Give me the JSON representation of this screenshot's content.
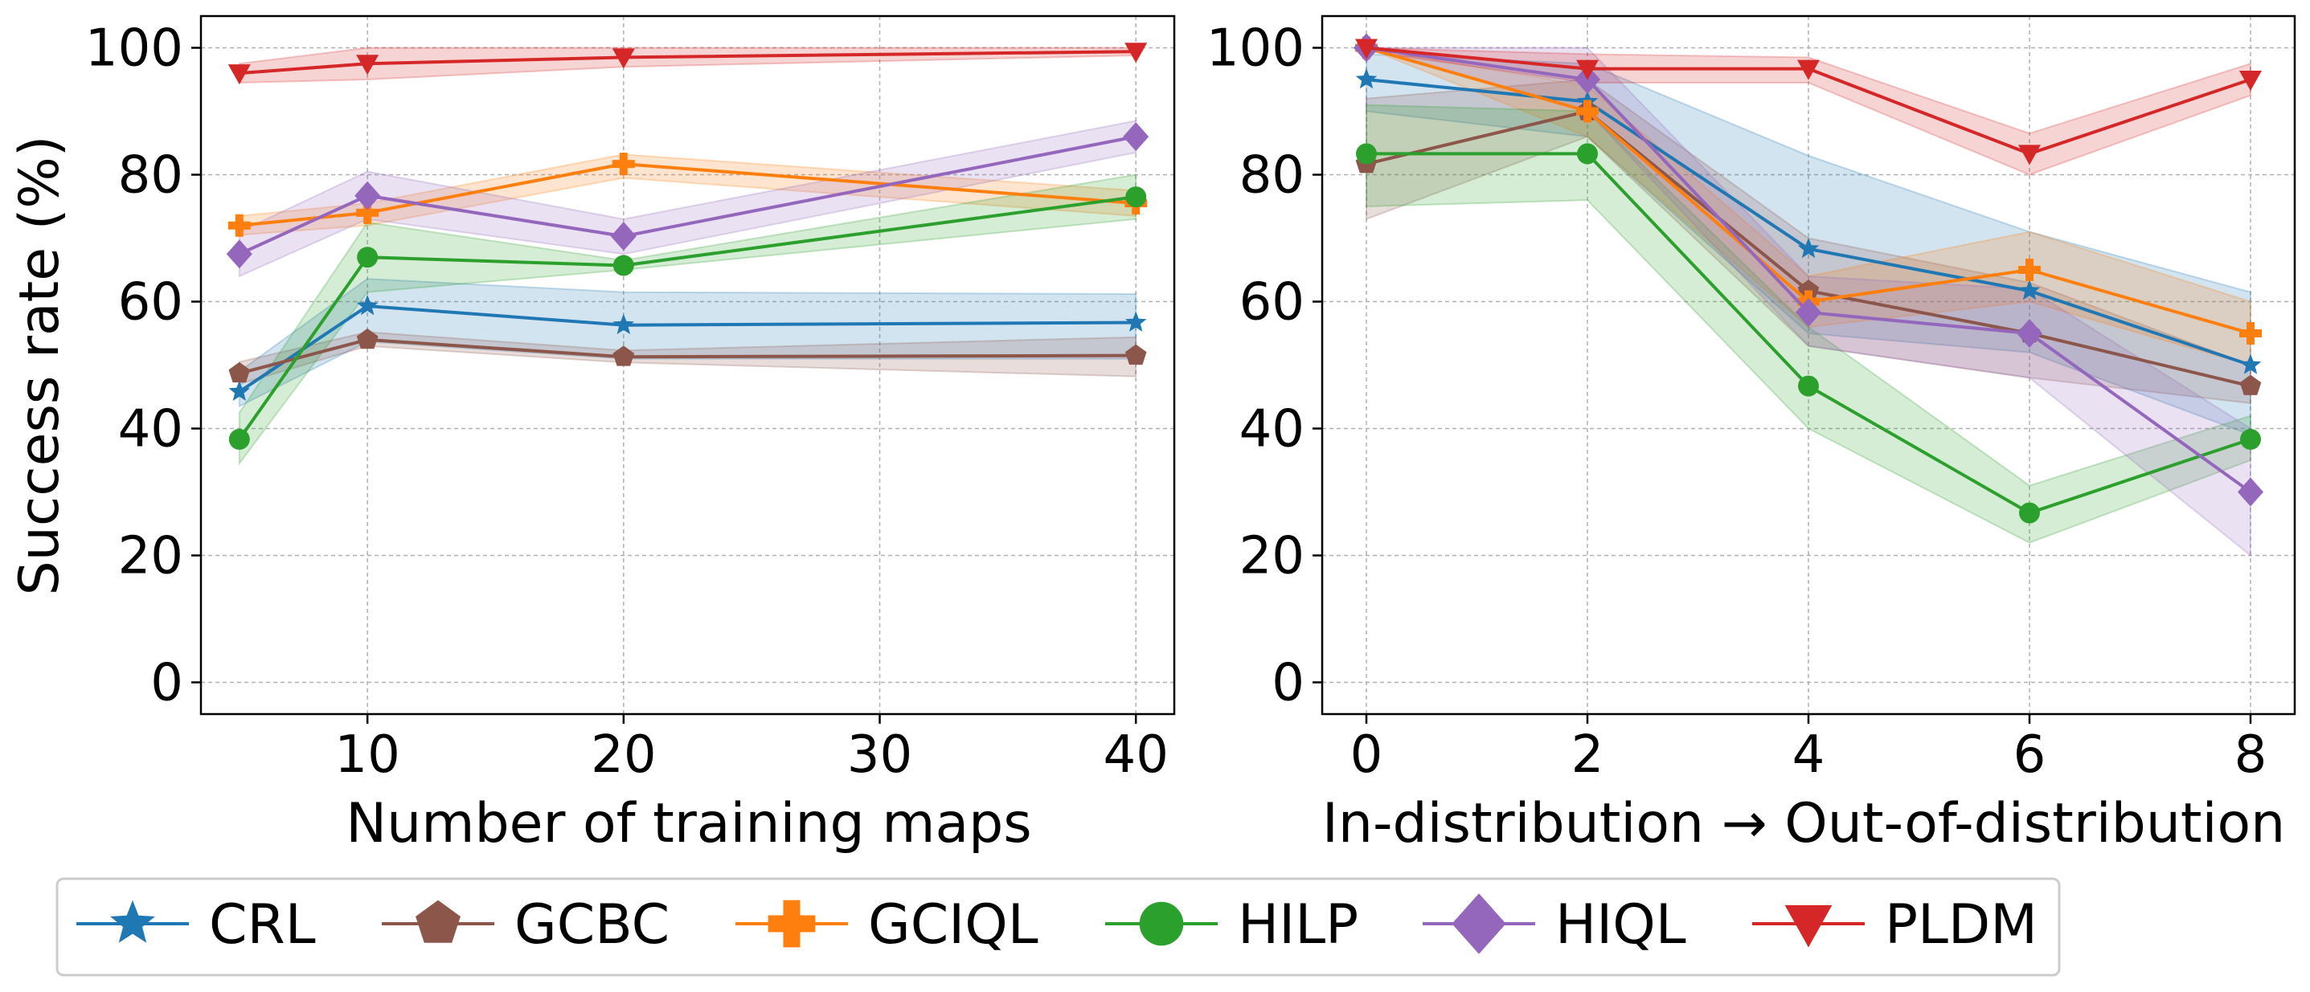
{
  "chart_data": [
    {
      "type": "line",
      "title": "",
      "xlabel": "Number of training maps",
      "ylabel": "Success rate (%)",
      "xlim": [
        3.5,
        41.5
      ],
      "ylim": [
        -5,
        105
      ],
      "xticks": [
        10,
        20,
        30,
        40
      ],
      "yticks": [
        0,
        20,
        40,
        60,
        80,
        100
      ],
      "grid": true,
      "series": [
        {
          "name": "CRL",
          "color": "#1f77b4",
          "marker": "star",
          "x": [
            5,
            10,
            20,
            40
          ],
          "y": [
            45.8,
            59.3,
            56.3,
            56.7
          ],
          "lower": [
            43.5,
            53.7,
            51.0,
            51.0
          ],
          "upper": [
            49.0,
            63.6,
            61.5,
            61.2
          ]
        },
        {
          "name": "GCBC",
          "color": "#8c564b",
          "marker": "pentagon",
          "x": [
            5,
            10,
            20,
            40
          ],
          "y": [
            48.7,
            54.0,
            51.3,
            51.5
          ],
          "lower": [
            47.0,
            53.0,
            50.4,
            48.2
          ],
          "upper": [
            50.5,
            55.2,
            52.3,
            54.4
          ]
        },
        {
          "name": "GCIQL",
          "color": "#ff7f0e",
          "marker": "plus",
          "x": [
            5,
            10,
            20,
            40
          ],
          "y": [
            72.0,
            74.0,
            81.7,
            75.5
          ],
          "lower": [
            70.5,
            72.0,
            79.5,
            73.5
          ],
          "upper": [
            73.5,
            75.5,
            83.2,
            77.5
          ]
        },
        {
          "name": "HILP",
          "color": "#2ca02c",
          "marker": "circle",
          "x": [
            5,
            10,
            20,
            40
          ],
          "y": [
            38.3,
            67.0,
            65.7,
            76.5
          ],
          "lower": [
            34.5,
            61.5,
            65.0,
            73.0
          ],
          "upper": [
            42.5,
            72.5,
            66.5,
            80.0
          ]
        },
        {
          "name": "HIQL",
          "color": "#9467bd",
          "marker": "diamond",
          "x": [
            5,
            10,
            20,
            40
          ],
          "y": [
            67.5,
            76.7,
            70.3,
            86.0
          ],
          "lower": [
            64.0,
            73.0,
            67.5,
            83.5
          ],
          "upper": [
            71.0,
            80.5,
            73.0,
            88.5
          ]
        },
        {
          "name": "PLDM",
          "color": "#d62728",
          "marker": "triangle-down",
          "x": [
            5,
            10,
            20,
            40
          ],
          "y": [
            96.0,
            97.5,
            98.5,
            99.4
          ],
          "lower": [
            94.5,
            95.0,
            97.0,
            98.8
          ],
          "upper": [
            97.5,
            100.0,
            100.0,
            100.0
          ]
        }
      ]
    },
    {
      "type": "line",
      "title": "",
      "xlabel": "In-distribution → Out-of-distribution",
      "ylabel": "",
      "xlim": [
        -0.4,
        8.4
      ],
      "ylim": [
        -5,
        105
      ],
      "xticks": [
        0,
        2,
        4,
        6,
        8
      ],
      "yticks": [
        0,
        20,
        40,
        60,
        80,
        100
      ],
      "grid": true,
      "series": [
        {
          "name": "CRL",
          "color": "#1f77b4",
          "marker": "star",
          "x": [
            0,
            2,
            4,
            6,
            8
          ],
          "y": [
            95.0,
            91.5,
            68.3,
            61.7,
            50.0
          ],
          "lower": [
            90.0,
            86.0,
            55.0,
            52.0,
            39.0
          ],
          "upper": [
            99.0,
            97.5,
            83.0,
            71.0,
            61.5
          ]
        },
        {
          "name": "GCBC",
          "color": "#8c564b",
          "marker": "pentagon",
          "x": [
            0,
            2,
            4,
            6,
            8
          ],
          "y": [
            81.7,
            90.0,
            61.7,
            55.0,
            46.7
          ],
          "lower": [
            73.0,
            86.0,
            53.0,
            48.0,
            44.0
          ],
          "upper": [
            92.0,
            95.0,
            70.0,
            63.0,
            50.0
          ]
        },
        {
          "name": "GCIQL",
          "color": "#ff7f0e",
          "marker": "plus",
          "x": [
            0,
            2,
            4,
            6,
            8
          ],
          "y": [
            100.0,
            90.0,
            60.0,
            65.0,
            55.0
          ],
          "lower": [
            100.0,
            86.0,
            56.0,
            60.0,
            50.0
          ],
          "upper": [
            100.0,
            94.0,
            64.0,
            71.0,
            60.0
          ]
        },
        {
          "name": "HILP",
          "color": "#2ca02c",
          "marker": "circle",
          "x": [
            0,
            2,
            4,
            6,
            8
          ],
          "y": [
            83.3,
            83.3,
            46.7,
            26.7,
            38.3
          ],
          "lower": [
            75.0,
            76.0,
            40.0,
            22.0,
            35.0
          ],
          "upper": [
            91.0,
            90.0,
            56.0,
            31.0,
            42.0
          ]
        },
        {
          "name": "HIQL",
          "color": "#9467bd",
          "marker": "diamond",
          "x": [
            0,
            2,
            4,
            6,
            8
          ],
          "y": [
            100.0,
            95.0,
            58.3,
            55.0,
            30.0
          ],
          "lower": [
            100.0,
            90.0,
            53.0,
            48.0,
            20.0
          ],
          "upper": [
            100.0,
            100.0,
            64.0,
            62.0,
            40.0
          ]
        },
        {
          "name": "PLDM",
          "color": "#d62728",
          "marker": "triangle-down",
          "x": [
            0,
            2,
            4,
            6,
            8
          ],
          "y": [
            100.0,
            96.7,
            96.7,
            83.3,
            95.0
          ],
          "lower": [
            99.5,
            94.5,
            94.5,
            80.0,
            92.5
          ],
          "upper": [
            100.0,
            99.0,
            98.5,
            86.5,
            97.5
          ]
        }
      ]
    }
  ],
  "legend": {
    "placement": "bottom",
    "entries": [
      "CRL",
      "GCBC",
      "GCIQL",
      "HILP",
      "HIQL",
      "PLDM"
    ]
  }
}
